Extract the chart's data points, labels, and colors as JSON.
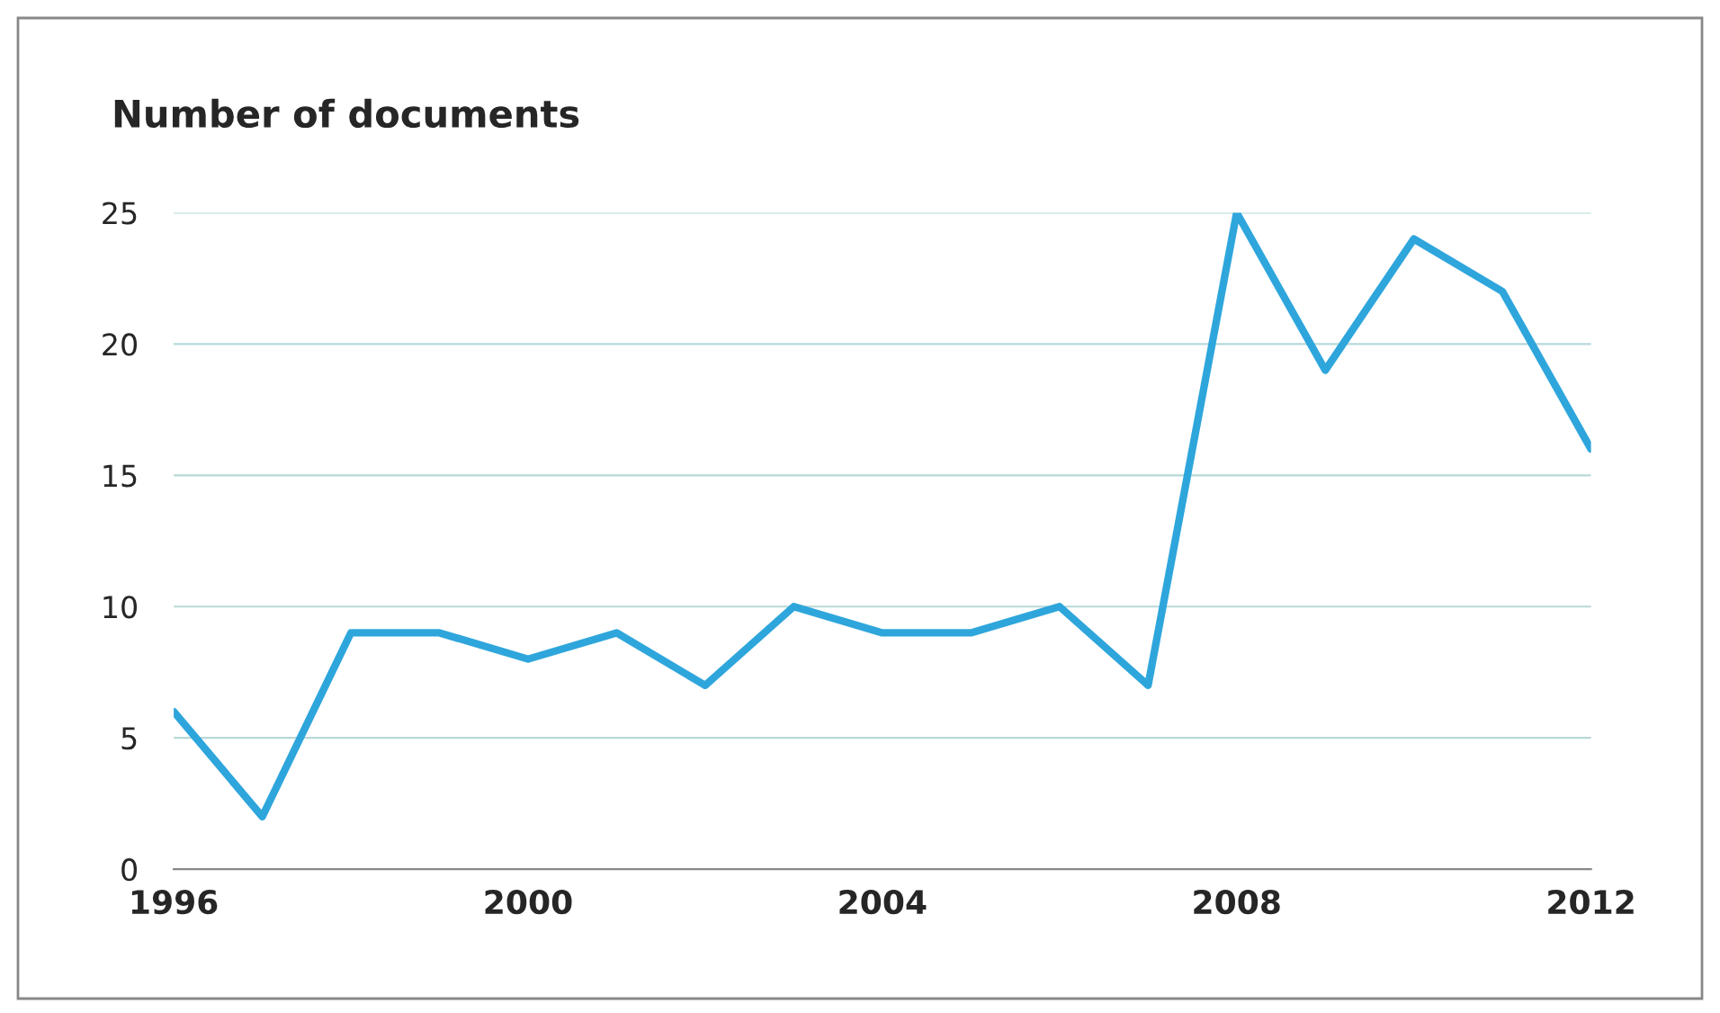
{
  "chart_data": {
    "type": "line",
    "title": "Number of documents",
    "x": [
      1996,
      1997,
      1998,
      1999,
      2000,
      2001,
      2002,
      2003,
      2004,
      2005,
      2006,
      2007,
      2008,
      2009,
      2010,
      2011,
      2012
    ],
    "series": [
      {
        "color": "#2ea6dc",
        "values": [
          6,
          2,
          9,
          9,
          8,
          9,
          7,
          10,
          9,
          9,
          10,
          7,
          25,
          19,
          24,
          22,
          16
        ]
      }
    ],
    "xlim": [
      1996,
      2012
    ],
    "xticks": [
      1996,
      2000,
      2004,
      2008,
      2012
    ],
    "ylim": [
      0,
      25
    ],
    "yticks": [
      0,
      5,
      10,
      15,
      20,
      25
    ],
    "grid": "y",
    "marker": "none",
    "line_style": "solid"
  }
}
